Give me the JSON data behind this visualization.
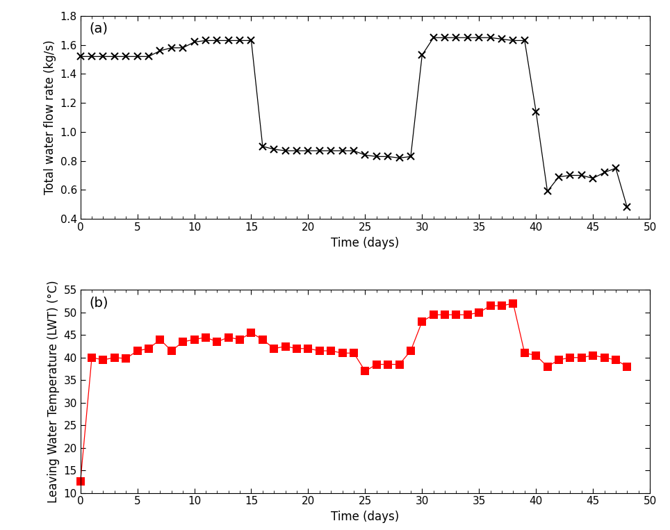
{
  "flow_x": [
    0,
    1,
    2,
    3,
    4,
    5,
    6,
    7,
    8,
    9,
    10,
    11,
    12,
    13,
    14,
    15,
    16,
    17,
    18,
    19,
    20,
    21,
    22,
    23,
    24,
    25,
    26,
    27,
    28,
    29,
    30,
    31,
    32,
    33,
    34,
    35,
    36,
    37,
    38,
    39,
    40,
    41,
    42,
    43,
    44,
    45,
    46,
    47,
    48
  ],
  "flow_y": [
    1.52,
    1.52,
    1.52,
    1.52,
    1.52,
    1.52,
    1.52,
    1.56,
    1.58,
    1.58,
    1.62,
    1.63,
    1.63,
    1.63,
    1.63,
    1.63,
    0.9,
    0.88,
    0.87,
    0.87,
    0.87,
    0.87,
    0.87,
    0.87,
    0.87,
    0.84,
    0.83,
    0.83,
    0.82,
    0.83,
    1.53,
    1.65,
    1.65,
    1.65,
    1.65,
    1.65,
    1.65,
    1.64,
    1.63,
    1.63,
    1.14,
    0.59,
    0.69,
    0.7,
    0.7,
    0.68,
    0.72,
    0.75,
    0.48
  ],
  "temp_x": [
    0,
    1,
    2,
    3,
    4,
    5,
    6,
    7,
    8,
    9,
    10,
    11,
    12,
    13,
    14,
    15,
    16,
    17,
    18,
    19,
    20,
    21,
    22,
    23,
    24,
    25,
    26,
    27,
    28,
    29,
    30,
    31,
    32,
    33,
    34,
    35,
    36,
    37,
    38,
    39,
    40,
    41,
    42,
    43,
    44,
    45,
    46,
    47,
    48
  ],
  "temp_y": [
    12.5,
    40.0,
    39.5,
    40.0,
    39.8,
    41.5,
    42.0,
    44.0,
    41.5,
    43.5,
    44.0,
    44.5,
    43.5,
    44.5,
    44.0,
    45.5,
    44.0,
    42.0,
    42.5,
    42.0,
    42.0,
    41.5,
    41.5,
    41.0,
    41.0,
    37.0,
    38.5,
    38.5,
    38.5,
    41.5,
    48.0,
    49.5,
    49.5,
    49.5,
    49.5,
    50.0,
    51.5,
    51.5,
    52.0,
    41.0,
    40.5,
    38.0,
    39.5,
    40.0,
    40.0,
    40.5,
    40.0,
    39.5,
    38.0
  ],
  "flow_ylabel": "Total water flow rate (kg/s)",
  "temp_ylabel": "Leaving Water Temperature (LWT) (°C)",
  "xlabel": "Time (days)",
  "flow_ylim": [
    0.4,
    1.8
  ],
  "flow_yticks": [
    0.4,
    0.6,
    0.8,
    1.0,
    1.2,
    1.4,
    1.6,
    1.8
  ],
  "temp_ylim": [
    10,
    55
  ],
  "temp_yticks": [
    10,
    15,
    20,
    25,
    30,
    35,
    40,
    45,
    50,
    55
  ],
  "xlim": [
    0,
    50
  ],
  "xticks": [
    0,
    5,
    10,
    15,
    20,
    25,
    30,
    35,
    40,
    45,
    50
  ],
  "flow_color": "#000000",
  "temp_color": "#ff0000",
  "label_a": "(a)",
  "label_b": "(b)",
  "flow_marker": "x",
  "temp_marker": "s",
  "markersize_flow": 7,
  "markersize_temp": 9,
  "linewidth": 0.9,
  "figsize": [
    9.64,
    7.63
  ],
  "dpi": 100,
  "bg_color": "#ffffff",
  "label_fontsize": 12,
  "tick_fontsize": 11,
  "annotation_fontsize": 14
}
